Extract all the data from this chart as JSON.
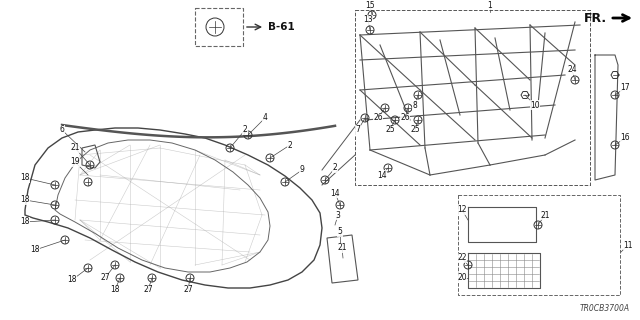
{
  "bg_color": "#ffffff",
  "ref_code": "TR0CB3700A",
  "direction_label": "FR.",
  "b61_label": "B-61",
  "fig_w": 6.4,
  "fig_h": 3.2,
  "dpi": 100
}
